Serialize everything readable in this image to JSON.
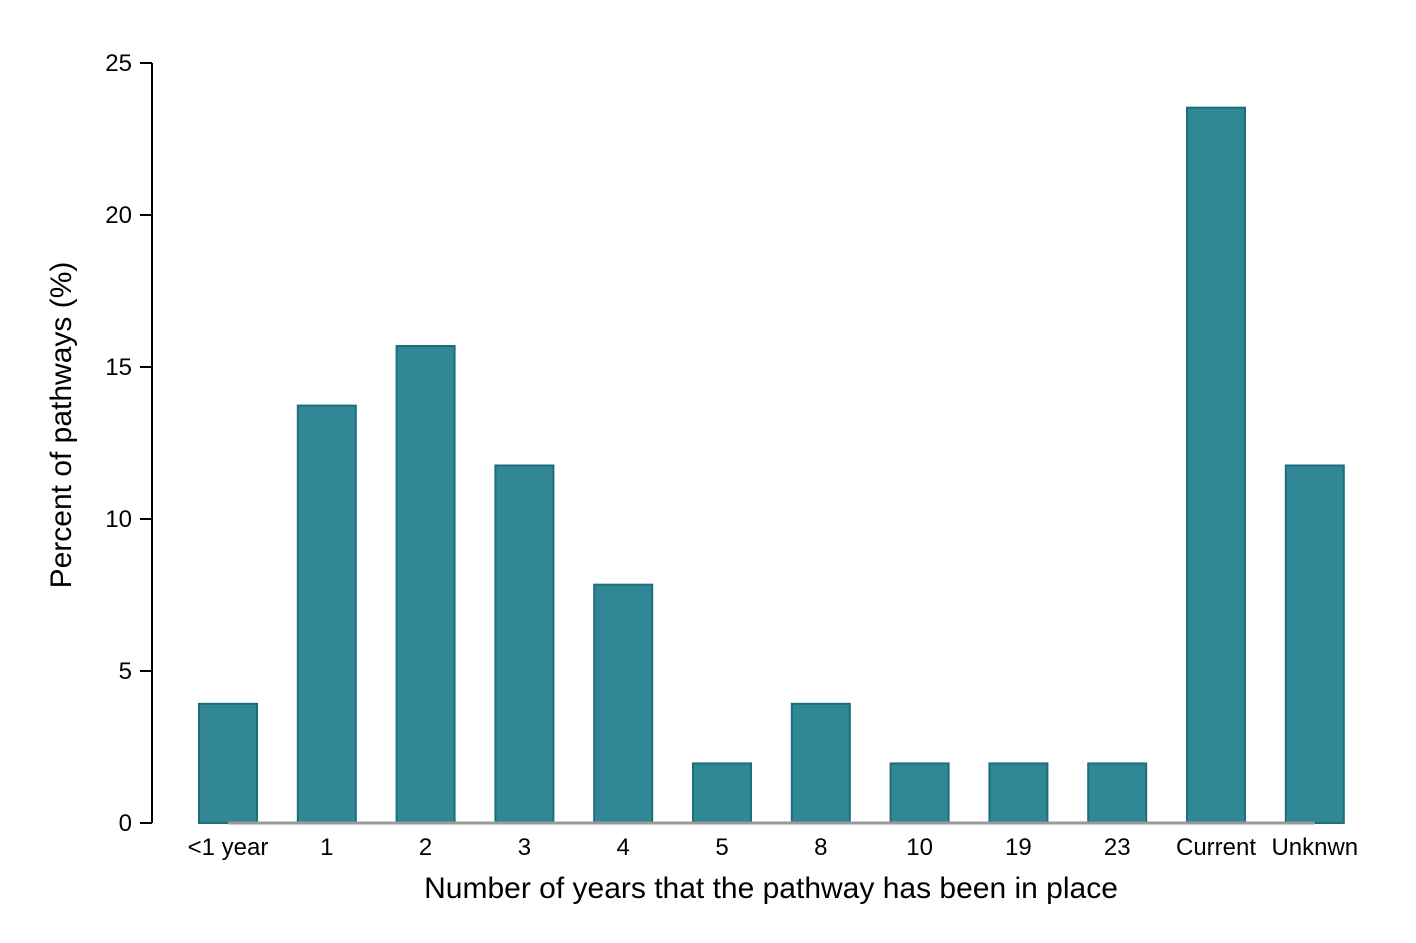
{
  "chart_data": {
    "type": "bar",
    "title": "",
    "xlabel": "Number of years that the pathway has been in place",
    "ylabel": "Percent of pathways (%)",
    "categories": [
      "<1 year",
      "1",
      "2",
      "3",
      "4",
      "5",
      "8",
      "10",
      "19",
      "23",
      "Current",
      "Unknwn"
    ],
    "values": [
      3.92,
      13.73,
      15.69,
      11.76,
      7.84,
      1.96,
      3.92,
      1.96,
      1.96,
      1.96,
      23.53,
      11.76
    ],
    "ylim": [
      0,
      25
    ],
    "yticks": [
      "0",
      "5",
      "10",
      "15",
      "20",
      "25"
    ],
    "grid": false,
    "legend": "none",
    "colors": {
      "bar_fill": "#318796",
      "bar_stroke": "#1b6e7e",
      "axis": "#000000",
      "baseline": "#999999"
    }
  }
}
